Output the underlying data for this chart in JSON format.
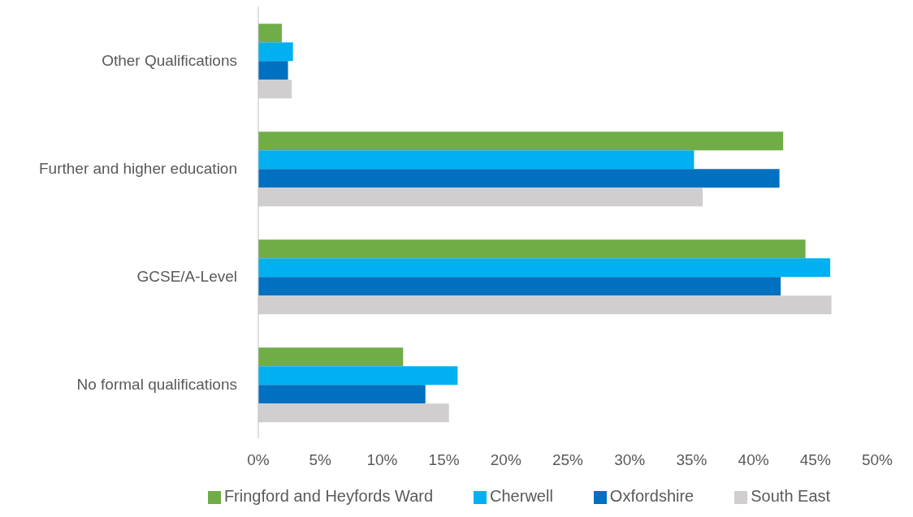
{
  "chart_data": {
    "type": "bar",
    "orientation": "horizontal",
    "categories": [
      "Other Qualifications",
      "Further and higher education",
      "GCSE/A-Level",
      "No formal qualifications"
    ],
    "series": [
      {
        "name": "Fringford and Heyfords Ward",
        "color": "#70ad47",
        "values": [
          1.9,
          42.4,
          44.2,
          11.7
        ]
      },
      {
        "name": "Cherwell",
        "color": "#00b0f0",
        "values": [
          2.8,
          35.2,
          46.2,
          16.1
        ]
      },
      {
        "name": "Oxfordshire",
        "color": "#0070c0",
        "values": [
          2.4,
          42.1,
          42.2,
          13.5
        ]
      },
      {
        "name": "South East",
        "color": "#d0cece",
        "values": [
          2.7,
          35.9,
          46.3,
          15.4
        ]
      }
    ],
    "xlim": [
      0,
      50
    ],
    "xticks": [
      {
        "value": 0,
        "label": "0%"
      },
      {
        "value": 5,
        "label": "5%"
      },
      {
        "value": 10,
        "label": "10%"
      },
      {
        "value": 15,
        "label": "15%"
      },
      {
        "value": 20,
        "label": "20%"
      },
      {
        "value": 25,
        "label": "25%"
      },
      {
        "value": 30,
        "label": "30%"
      },
      {
        "value": 35,
        "label": "35%"
      },
      {
        "value": 40,
        "label": "40%"
      },
      {
        "value": 45,
        "label": "45%"
      },
      {
        "value": 50,
        "label": "50%"
      }
    ],
    "grid": false,
    "legend": "bottom"
  }
}
